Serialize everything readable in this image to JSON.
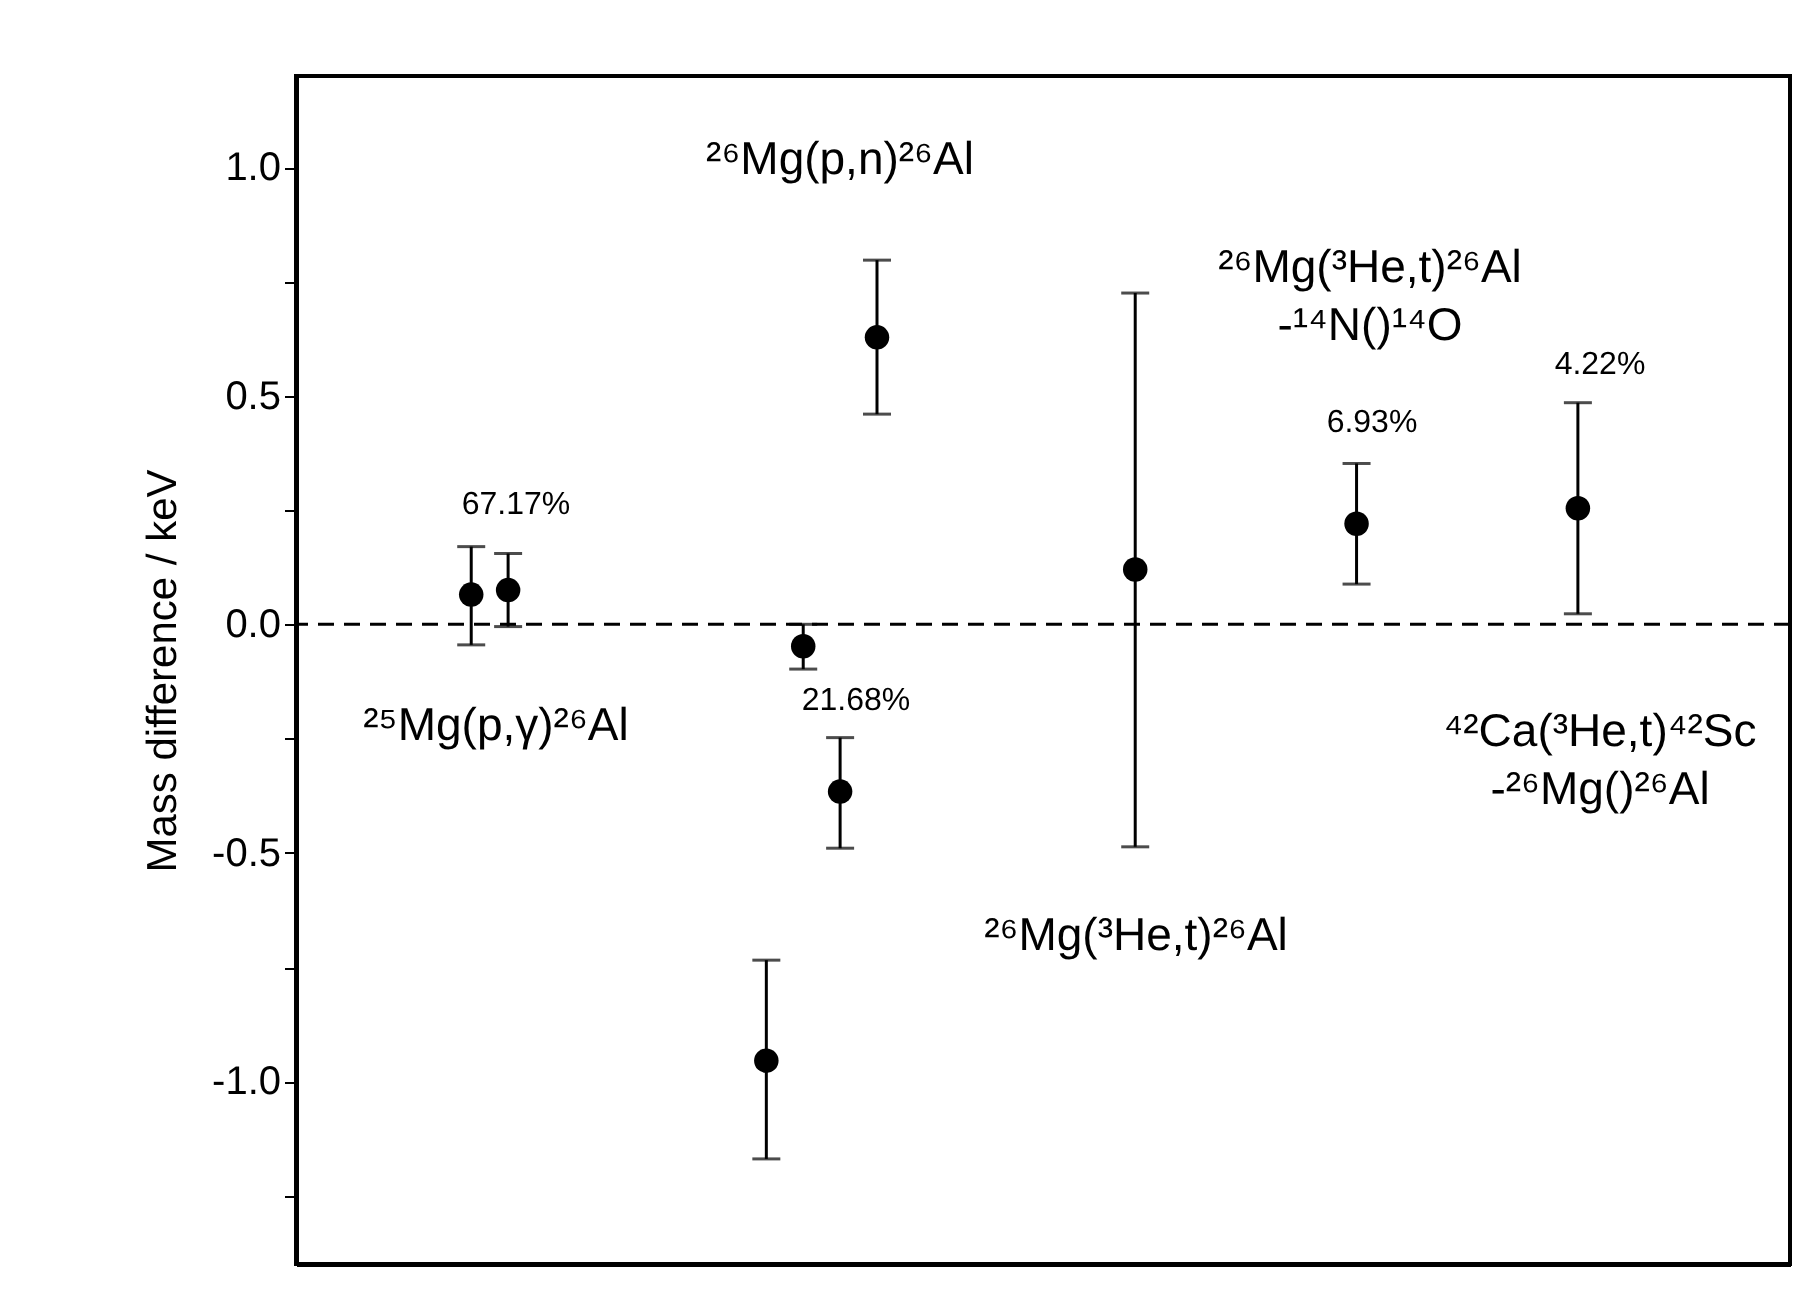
{
  "chart_data": {
    "type": "scatter",
    "ylabel": "Mass difference / keV",
    "categories": [
      null,
      null,
      null,
      null,
      null,
      null,
      null,
      null,
      null,
      null,
      null,
      null,
      null,
      null,
      null,
      null,
      null,
      null,
      null,
      null,
      null,
      null,
      null,
      null,
      null,
      null,
      null,
      null,
      null,
      null,
      null,
      null,
      null,
      null,
      null,
      null,
      null,
      null,
      null,
      null
    ],
    "values": [
      null,
      null,
      null,
      null,
      0.065,
      0.075,
      null,
      null,
      null,
      null,
      null,
      null,
      -0.955,
      -0.048,
      -0.366,
      0.628,
      null,
      null,
      null,
      null,
      null,
      null,
      0.12,
      null,
      null,
      null,
      null,
      null,
      0.22,
      null,
      null,
      null,
      null,
      null,
      0.254,
      null,
      null,
      null,
      null,
      null
    ],
    "errors": [
      null,
      null,
      null,
      null,
      [
        -0.045,
        0.17
      ],
      [
        -0.005,
        0.155
      ],
      null,
      null,
      null,
      null,
      null,
      null,
      [
        -1.17,
        -0.735
      ],
      [
        -0.098,
        0.0
      ],
      [
        -0.49,
        -0.248
      ],
      [
        0.46,
        0.797
      ],
      null,
      null,
      null,
      null,
      null,
      null,
      [
        -0.487,
        0.725
      ],
      null,
      null,
      null,
      null,
      null,
      [
        0.088,
        0.352
      ],
      null,
      null,
      null,
      null,
      null,
      [
        0.023,
        0.485
      ],
      null,
      null,
      null,
      null,
      null
    ],
    "color": "#000000",
    "marker": "circle",
    "ylim": [
      -1.4,
      1.2
    ],
    "yticks": [
      {
        "value": -1.25,
        "label": null
      },
      {
        "value": -1,
        "label": "-1.0"
      },
      {
        "value": -0.75,
        "label": null
      },
      {
        "value": -0.5,
        "label": "-0.5"
      },
      {
        "value": -0.25,
        "label": null
      },
      {
        "value": 0,
        "label": "0.0"
      },
      {
        "value": 0.25,
        "label": null
      },
      {
        "value": 0.5,
        "label": "0.5"
      },
      {
        "value": 0.75,
        "label": null
      },
      {
        "value": 1,
        "label": "1.0"
      }
    ],
    "tick_labels": "y",
    "grid": false,
    "legend": false,
    "ref_lines": [
      {
        "axis": "y",
        "value": 0,
        "line_style": "dashed",
        "color": "#000000"
      }
    ],
    "annotations": [
      "²⁶Mg(p,n)²⁶Al",
      "67.17%",
      "²⁵Mg(p,γ)²⁶Al",
      "21.68%",
      "²⁶Mg(³He,t)²⁶Al",
      "²⁶Mg(³He,t)²⁶Al\n-¹⁴N()¹⁴O",
      "6.93%",
      "4.22%",
      "⁴²Ca(³He,t)⁴²Sc\n-²⁶Mg()²⁶Al"
    ]
  }
}
